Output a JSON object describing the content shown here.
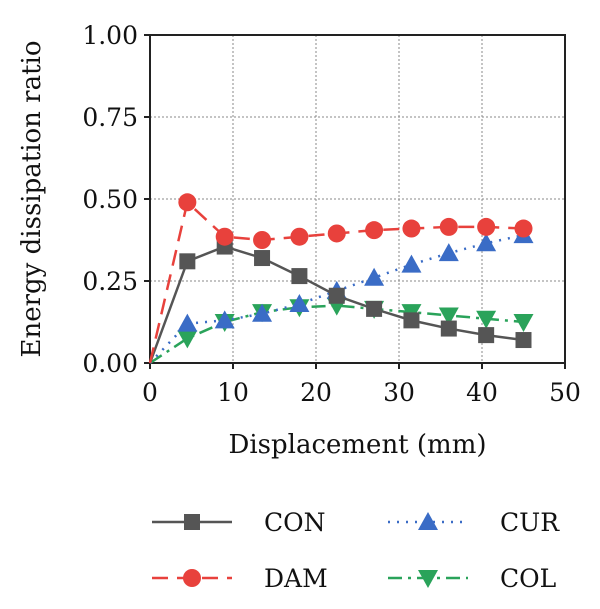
{
  "chart_data": {
    "type": "line",
    "title": "",
    "xlabel": "Displacement (mm)",
    "ylabel": "Energy dissipation ratio",
    "xlim": [
      0,
      50
    ],
    "ylim": [
      0,
      1.0
    ],
    "x_ticks": [
      "0",
      "10",
      "20",
      "30",
      "40",
      "50"
    ],
    "y_ticks": [
      "0.00",
      "0.25",
      "0.50",
      "0.75",
      "1.00"
    ],
    "grid": true,
    "legend_position": "bottom",
    "series": [
      {
        "name": "CON",
        "color": "#555555",
        "marker": "square",
        "line_style": "solid",
        "x": [
          0,
          4.5,
          9,
          13.5,
          18,
          22.5,
          27,
          31.5,
          36,
          40.5,
          45
        ],
        "y": [
          0.0,
          0.31,
          0.355,
          0.32,
          0.265,
          0.205,
          0.165,
          0.13,
          0.105,
          0.085,
          0.07
        ]
      },
      {
        "name": "CUR",
        "color": "#3a6cc6",
        "marker": "triangle-up",
        "line_style": "dotted",
        "x": [
          0,
          4.5,
          9,
          13.5,
          18,
          22.5,
          27,
          31.5,
          36,
          40.5,
          45
        ],
        "y": [
          0.0,
          0.12,
          0.13,
          0.15,
          0.18,
          0.22,
          0.26,
          0.3,
          0.335,
          0.365,
          0.39
        ]
      },
      {
        "name": "DAM",
        "color": "#e8413c",
        "marker": "circle",
        "line_style": "dashed",
        "x": [
          0,
          4.5,
          9,
          13.5,
          18,
          22.5,
          27,
          31.5,
          36,
          40.5,
          45
        ],
        "y": [
          0.0,
          0.49,
          0.385,
          0.375,
          0.385,
          0.395,
          0.405,
          0.41,
          0.415,
          0.415,
          0.41
        ]
      },
      {
        "name": "COL",
        "color": "#2aa35a",
        "marker": "triangle-down",
        "line_style": "dashdot",
        "x": [
          0,
          4.5,
          9,
          13.5,
          18,
          22.5,
          27,
          31.5,
          36,
          40.5,
          45
        ],
        "y": [
          0.0,
          0.075,
          0.125,
          0.155,
          0.17,
          0.175,
          0.165,
          0.155,
          0.145,
          0.135,
          0.125
        ]
      }
    ]
  }
}
